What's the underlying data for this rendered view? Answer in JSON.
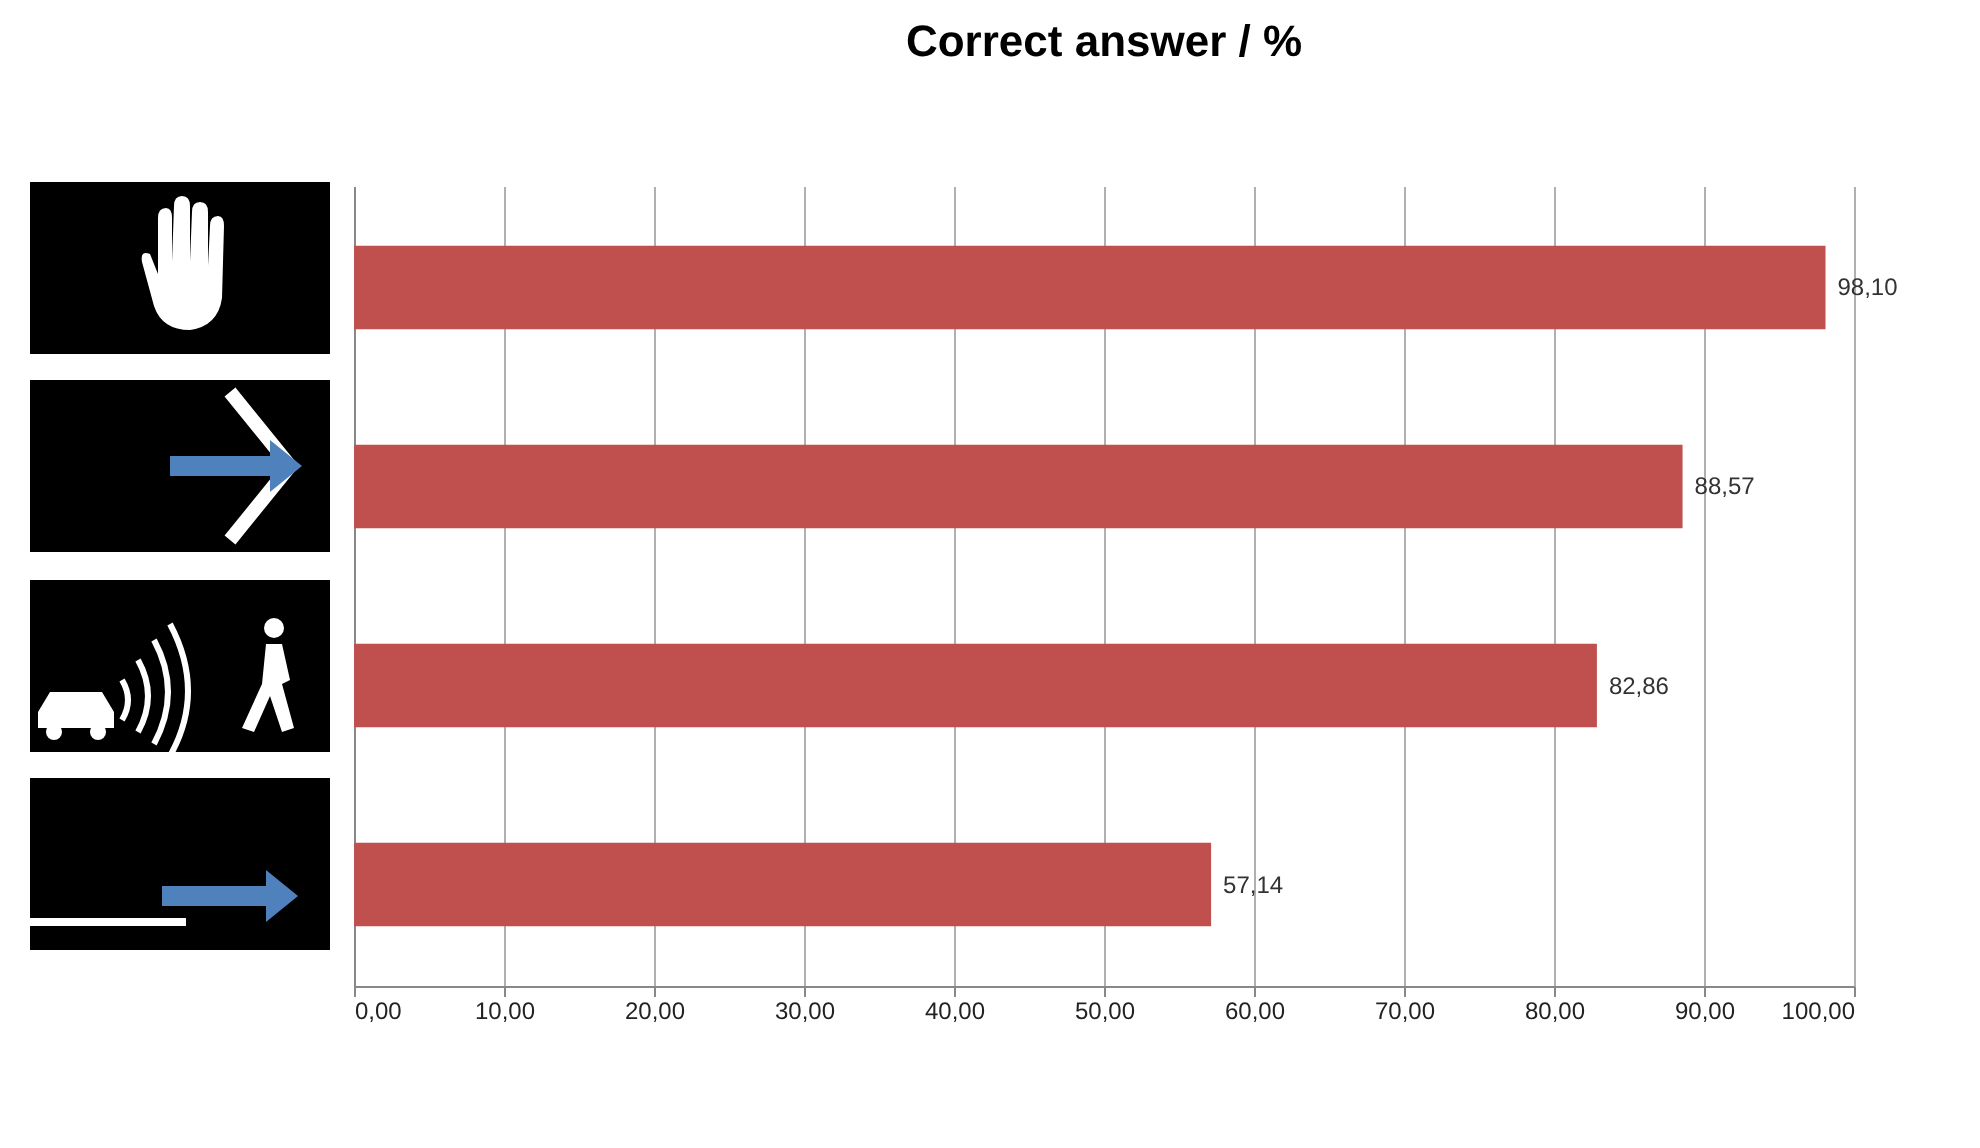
{
  "chart_data": {
    "type": "bar",
    "orientation": "horizontal",
    "title": "Correct answer / %",
    "categories": [
      null,
      null,
      null,
      null
    ],
    "values": [
      98.1,
      88.57,
      82.86,
      57.14
    ],
    "value_labels": [
      "98,10",
      "88,57",
      "82,86",
      "57,14"
    ],
    "color": "#c0504d",
    "xlim": [
      0,
      100
    ],
    "xticks": [
      {
        "value": 0,
        "label": "0,00"
      },
      {
        "value": 10,
        "label": "10,00"
      },
      {
        "value": 20,
        "label": "20,00"
      },
      {
        "value": 30,
        "label": "30,00"
      },
      {
        "value": 40,
        "label": "40,00"
      },
      {
        "value": 50,
        "label": "50,00"
      },
      {
        "value": 60,
        "label": "60,00"
      },
      {
        "value": 70,
        "label": "70,00"
      },
      {
        "value": 80,
        "label": "80,00"
      },
      {
        "value": 90,
        "label": "90,00"
      },
      {
        "value": 100,
        "label": "100,00"
      }
    ],
    "grid": "x"
  }
}
